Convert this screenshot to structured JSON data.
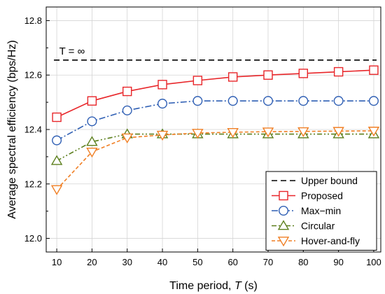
{
  "chart_data": {
    "type": "line",
    "xlabel_prefix": "Time period, ",
    "xlabel_var": "T",
    "xlabel_suffix": " (s)",
    "ylabel": "Average spectral efficiency (bps/Hz)",
    "xlim": [
      7,
      102
    ],
    "ylim": [
      11.95,
      12.85
    ],
    "x_ticks": [
      10,
      20,
      30,
      40,
      50,
      60,
      70,
      80,
      90,
      100
    ],
    "y_ticks": [
      12.0,
      12.2,
      12.4,
      12.6,
      12.8
    ],
    "y_tick_labels": [
      "12.0",
      "12.2",
      "12.4",
      "12.6",
      "12.8"
    ],
    "grid": true,
    "legend_position": "bottom-right",
    "annotation": "T = ∞",
    "x": [
      10,
      20,
      30,
      40,
      50,
      60,
      70,
      80,
      90,
      100
    ],
    "series": [
      {
        "name": "Upper bound",
        "color": "#000000",
        "dash": "8,5",
        "marker": "none",
        "values": [
          12.655,
          12.655,
          12.655,
          12.655,
          12.655,
          12.655,
          12.655,
          12.655,
          12.655,
          12.655
        ]
      },
      {
        "name": "Proposed",
        "color": "#e8262a",
        "dash": "",
        "marker": "square",
        "values": [
          12.445,
          12.505,
          12.54,
          12.565,
          12.58,
          12.593,
          12.6,
          12.606,
          12.612,
          12.618
        ]
      },
      {
        "name": "Max−min",
        "color": "#2f5fb4",
        "dash": "9,3,2,3",
        "marker": "circle",
        "values": [
          12.36,
          12.43,
          12.47,
          12.495,
          12.505,
          12.505,
          12.505,
          12.505,
          12.505,
          12.505
        ]
      },
      {
        "name": "Circular",
        "color": "#5c7f1d",
        "dash": "7,3,2,3,2,3",
        "marker": "triangle-up",
        "values": [
          12.285,
          12.355,
          12.383,
          12.383,
          12.383,
          12.383,
          12.383,
          12.383,
          12.383,
          12.383
        ]
      },
      {
        "name": "Hover-and-fly",
        "color": "#f07f24",
        "dash": "5,3",
        "marker": "triangle-down",
        "values": [
          12.18,
          12.318,
          12.37,
          12.38,
          12.387,
          12.39,
          12.392,
          12.393,
          12.394,
          12.395
        ]
      }
    ]
  }
}
